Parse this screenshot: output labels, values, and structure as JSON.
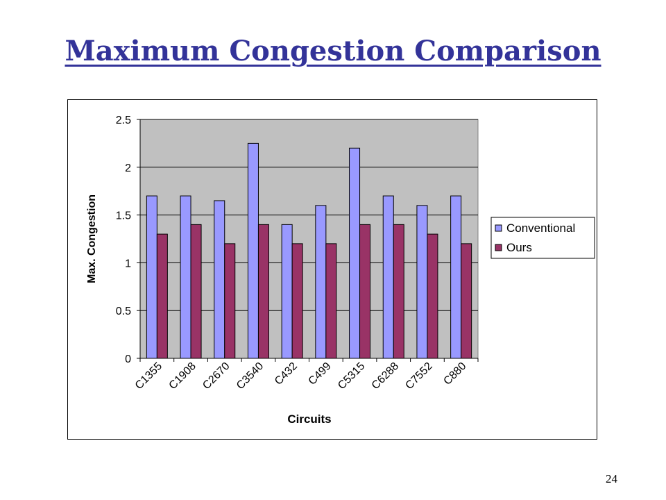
{
  "slide": {
    "title": "Maximum Congestion Comparison",
    "page_number": "24"
  },
  "chart_data": {
    "type": "bar",
    "title": "",
    "xlabel": "Circuits",
    "ylabel": "Max. Congestion",
    "ylim": [
      0,
      2.5
    ],
    "yticks": [
      "0",
      "0.5",
      "1",
      "1.5",
      "2",
      "2.5"
    ],
    "grid": true,
    "legend_position": "right",
    "categories": [
      "C1355",
      "C1908",
      "C2670",
      "C3540",
      "C432",
      "C499",
      "C5315",
      "C6288",
      "C7552",
      "C880"
    ],
    "series": [
      {
        "name": "Conventional",
        "color": "#9999ff",
        "values": [
          1.7,
          1.7,
          1.65,
          2.25,
          1.4,
          1.6,
          2.2,
          1.7,
          1.6,
          1.7
        ]
      },
      {
        "name": "Ours",
        "color": "#993366",
        "values": [
          1.3,
          1.4,
          1.2,
          1.4,
          1.2,
          1.2,
          1.4,
          1.4,
          1.3,
          1.2
        ]
      }
    ],
    "plot_background": "#c0c0c0"
  }
}
